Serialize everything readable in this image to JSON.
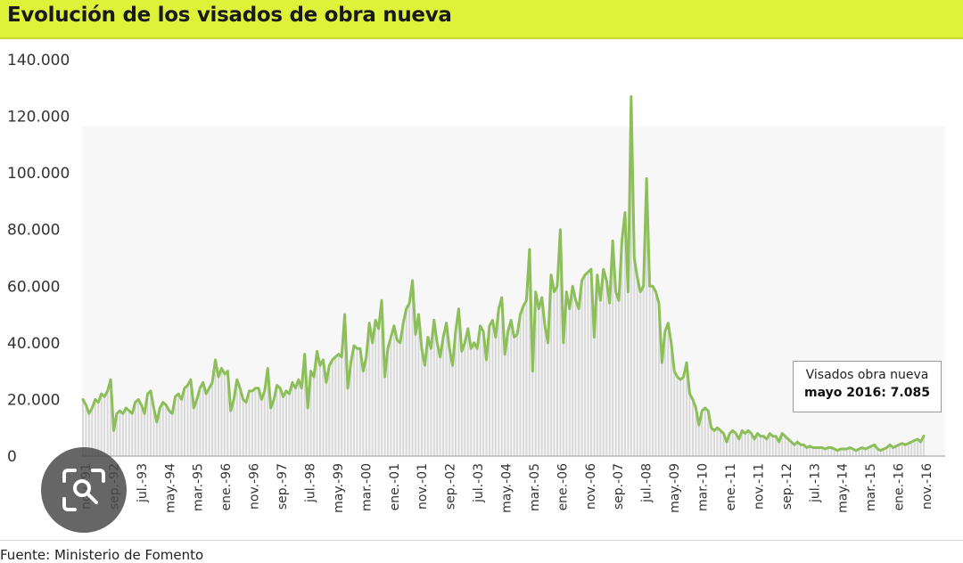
{
  "header": {
    "title": "Evolución de los visados de obra nueva"
  },
  "footer": {
    "source": "Fuente: Ministerio de Fomento"
  },
  "annotation": {
    "label": "Visados obra nueva",
    "value": "mayo 2016: 7.085"
  },
  "colors": {
    "header_bg": "#dff23a",
    "line": "#8cbf5a",
    "bars": "#d8d8d8"
  },
  "share_icon": "image-search-icon",
  "chart_data": {
    "type": "line",
    "title": "Evolución de los visados de obra nueva",
    "xlabel": "",
    "ylabel": "",
    "ylim": [
      0,
      140000
    ],
    "yticks": [
      0,
      20000,
      40000,
      60000,
      80000,
      100000,
      120000,
      140000
    ],
    "ytick_labels": [
      "0",
      "20.000",
      "40.000",
      "60.000",
      "80.000",
      "100.000",
      "120.000",
      "140.000"
    ],
    "xtick_labels": [
      "nov.-91",
      "sep.-92",
      "jul.-93",
      "may.-94",
      "mar.-95",
      "ene.-96",
      "nov.-96",
      "sep.-97",
      "jul.-98",
      "may.-99",
      "mar.-00",
      "ene.-01",
      "nov.-01",
      "sep.-02",
      "jul.-03",
      "may.-04",
      "mar.-05",
      "ene.-06",
      "nov.-06",
      "sep.-07",
      "jul.-08",
      "may.-09",
      "mar.-10",
      "ene.-11",
      "nov.-11",
      "sep.-12",
      "jul.-13",
      "may.-14",
      "mar.-15",
      "ene.-16",
      "nov.-16"
    ],
    "x_start": "nov.-91",
    "x_end": "may.-16",
    "grid": false,
    "legend": "none",
    "series": [
      {
        "style": "line with monthly bars",
        "values": [
          20000,
          18000,
          15000,
          17000,
          20000,
          19000,
          22000,
          21000,
          23000,
          27000,
          9000,
          15000,
          16000,
          15000,
          17000,
          16000,
          15000,
          19000,
          20000,
          18000,
          15000,
          22000,
          23000,
          17000,
          12000,
          17000,
          19000,
          18000,
          16000,
          15000,
          21000,
          22000,
          20000,
          24000,
          25000,
          27000,
          17000,
          20000,
          24000,
          26000,
          22000,
          24000,
          26000,
          34000,
          28000,
          31000,
          29000,
          30000,
          16000,
          20000,
          27000,
          24000,
          20000,
          19000,
          23000,
          23000,
          24000,
          24000,
          20000,
          23000,
          31000,
          17000,
          20000,
          25000,
          24000,
          21000,
          23000,
          22000,
          26000,
          24000,
          27000,
          24000,
          36000,
          17000,
          30000,
          28000,
          37000,
          32000,
          34000,
          26000,
          32000,
          34000,
          35000,
          36000,
          35000,
          50000,
          24000,
          33000,
          39000,
          38000,
          38000,
          30000,
          35000,
          47000,
          40000,
          48000,
          45000,
          55000,
          28000,
          38000,
          42000,
          46000,
          41000,
          40000,
          47000,
          52000,
          54000,
          62000,
          43000,
          50000,
          38000,
          32000,
          42000,
          38000,
          48000,
          40000,
          35000,
          42000,
          47000,
          38000,
          32000,
          44000,
          52000,
          37000,
          40000,
          45000,
          38000,
          40000,
          38000,
          46000,
          44000,
          34000,
          46000,
          48000,
          42000,
          52000,
          56000,
          36000,
          44000,
          48000,
          42000,
          43000,
          50000,
          53000,
          55000,
          73000,
          30000,
          58000,
          52000,
          56000,
          46000,
          40000,
          64000,
          58000,
          60000,
          80000,
          40000,
          58000,
          52000,
          60000,
          55000,
          52000,
          62000,
          64000,
          65000,
          66000,
          42000,
          64000,
          55000,
          66000,
          62000,
          54000,
          76000,
          58000,
          55000,
          76000,
          86000,
          58000,
          127000,
          70000,
          63000,
          58000,
          60000,
          98000,
          60000,
          60000,
          58000,
          54000,
          33000,
          44000,
          47000,
          40000,
          30000,
          28000,
          27000,
          28000,
          33000,
          22000,
          20000,
          17000,
          11000,
          16000,
          17000,
          16000,
          10000,
          9000,
          10000,
          9000,
          8000,
          5000,
          8000,
          9000,
          8000,
          6000,
          9000,
          8000,
          9000,
          8000,
          6000,
          8000,
          7000,
          7000,
          6000,
          8000,
          7000,
          7000,
          5000,
          8000,
          7000,
          6000,
          5000,
          4000,
          5000,
          4000,
          4000,
          3000,
          3500,
          3000,
          3000,
          3000,
          3000,
          2500,
          3000,
          3000,
          2500,
          2000,
          2500,
          2500,
          2500,
          3000,
          2500,
          2000,
          2500,
          3000,
          2500,
          3000,
          3500,
          4000,
          2500,
          2000,
          2500,
          3000,
          4000,
          3000,
          3500,
          4000,
          4500,
          4000,
          4500,
          5000,
          5500,
          6000,
          5000,
          7085
        ]
      }
    ]
  }
}
